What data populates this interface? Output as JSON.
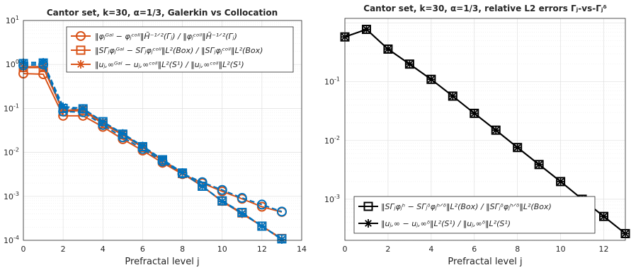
{
  "colors": {
    "orange": "#D95319",
    "blue": "#0072BD",
    "black": "#000000"
  },
  "chart_data": [
    {
      "type": "line",
      "title": "Cantor set, k=30, α=1/3, Galerkin vs Collocation",
      "xlabel": "Prefractal level j",
      "ylabel": "",
      "xlim": [
        0,
        14
      ],
      "ylim": [
        0.0001,
        10
      ],
      "yscale": "log",
      "grid": true,
      "legend_position": "top-right",
      "xticks": [
        "0",
        "2",
        "4",
        "6",
        "8",
        "10",
        "12",
        "14"
      ],
      "yticks": [
        "10^0 exp:0",
        "10^-1",
        "10^-2",
        "10^-3",
        "10^-4"
      ],
      "ytick_labels": [
        {
          "base": "10",
          "exp": "1"
        },
        {
          "base": "10",
          "exp": "0"
        },
        {
          "base": "10",
          "exp": "-1"
        },
        {
          "base": "10",
          "exp": "-2"
        },
        {
          "base": "10",
          "exp": "-3"
        },
        {
          "base": "10",
          "exp": "-4"
        }
      ],
      "x": [
        0,
        1,
        2,
        3,
        4,
        5,
        6,
        7,
        8,
        9,
        10,
        11,
        12,
        13
      ],
      "series": [
        {
          "name": "‖φⱼᴳᵃˡ − φⱼᶜᵒˡˡ‖ / ‖φⱼᶜᵒˡˡ‖ (H̃⁻¹ᐟ²(Γⱼ))",
          "group": "orange",
          "marker": "circle",
          "dash": "solid",
          "values": [
            0.62,
            0.6,
            0.068,
            0.068,
            0.038,
            0.02,
            0.011,
            0.0058,
            0.0032,
            0.002,
            0.0013,
            0.00088,
            0.00058,
            0.00044
          ]
        },
        {
          "name": "‖SΓⱼφⱼᴳᵃˡ − SΓⱼφⱼᶜᵒˡˡ‖ / ‖SΓⱼφⱼᶜᵒˡˡ‖ (L²(Box))",
          "group": "orange",
          "marker": "square",
          "dash": "solid",
          "values": [
            0.85,
            0.85,
            0.085,
            0.09,
            0.045,
            0.025,
            0.013,
            0.0065,
            0.0033,
            0.0017,
            0.00078,
            0.00042,
            0.00021,
            0.00011
          ]
        },
        {
          "name": "‖uᴳᵃˡ − uᶜᵒˡˡ‖ / ‖uᶜᵒˡˡ‖ (L²(S¹))",
          "group": "orange",
          "marker": "star",
          "dash": "solid",
          "values": [
            0.88,
            0.9,
            0.09,
            0.095,
            0.048,
            0.026,
            0.0135,
            0.0067,
            0.0034,
            0.0017,
            0.00076,
            0.0004,
            0.00021,
            0.000105
          ]
        },
        {
          "name": "blue-circle",
          "group": "blue",
          "marker": "circle",
          "dash": "dashed",
          "values": [
            0.95,
            1.0,
            0.085,
            0.082,
            0.042,
            0.022,
            0.012,
            0.0062,
            0.0033,
            0.0021,
            0.0014,
            0.00092,
            0.00065,
            0.00045
          ]
        },
        {
          "name": "blue-square",
          "group": "blue",
          "marker": "square",
          "dash": "dashed",
          "values": [
            1.05,
            1.08,
            0.1,
            0.098,
            0.05,
            0.026,
            0.0135,
            0.0068,
            0.0034,
            0.0017,
            0.00079,
            0.00043,
            0.00021,
            0.000108
          ]
        },
        {
          "name": "blue-star",
          "group": "blue",
          "marker": "star",
          "dash": "dashed",
          "values": [
            1.1,
            1.12,
            0.11,
            0.1,
            0.05,
            0.027,
            0.014,
            0.0069,
            0.0035,
            0.0017,
            0.00077,
            0.00041,
            0.00021,
            0.000104
          ]
        }
      ]
    },
    {
      "type": "line",
      "title": "Cantor set, k=30, α=1/3, relative L2 errors Γⱼ-vs-Γⱼᵟ",
      "xlabel": "Prefractal level j",
      "ylabel": "",
      "xlim": [
        0,
        13
      ],
      "ylim": [
        0.0002,
        1.2
      ],
      "yscale": "log",
      "grid": true,
      "legend_position": "bottom-left",
      "x": [
        0,
        1,
        2,
        3,
        4,
        5,
        6,
        7,
        8,
        9,
        10,
        11,
        12,
        13
      ],
      "series": [
        {
          "name": "‖SΓⱼφⱼʰ − SΓⱼᵟφⱼʰᐟᵟ‖ / ‖SΓⱼᵟφⱼʰᐟᵟ‖ (L²(Box))",
          "marker": "square",
          "dash": "solid",
          "values": [
            0.58,
            0.78,
            0.36,
            0.2,
            0.11,
            0.057,
            0.029,
            0.015,
            0.0076,
            0.0039,
            0.002,
            0.001,
            0.00051,
            0.00026
          ]
        },
        {
          "name": "‖uⱼ,∞ − uⱼ,∞ᵟ‖ / ‖uⱼ,∞ᵟ‖ (L²(S¹))",
          "marker": "star",
          "dash": "solid",
          "values": [
            0.58,
            0.78,
            0.36,
            0.2,
            0.11,
            0.057,
            0.029,
            0.015,
            0.0076,
            0.0039,
            0.002,
            0.001,
            0.00051,
            0.00026
          ]
        }
      ]
    }
  ],
  "left": {
    "title": "Cantor set, k=30, α=1/3, Galerkin vs Collocation",
    "xlabel": "Prefractal level j",
    "xticks": [
      "0",
      "2",
      "4",
      "6",
      "8",
      "10",
      "12",
      "14"
    ],
    "legend": [
      "‖φⱼᴳᵃˡ − φⱼᶜᵒˡˡ‖H̃⁻¹ᐟ²(Γⱼ) / ‖φⱼᶜᵒˡˡ‖H̃⁻¹ᐟ²(Γⱼ)",
      "‖SΓⱼφⱼᴳᵃˡ − SΓⱼφⱼᶜᵒˡˡ‖L²(Box) / ‖SΓⱼφⱼᶜᵒˡˡ‖L²(Box)",
      "‖uⱼ,∞ᴳᵃˡ − uⱼ,∞ᶜᵒˡˡ‖L²(S¹) / ‖uⱼ,∞ᶜᵒˡˡ‖L²(S¹)"
    ]
  },
  "right": {
    "title": "Cantor set, k=30, α=1/3, relative L2 errors Γⱼ-vs-Γⱼᵟ",
    "xlabel": "Prefractal level j",
    "xticks": [
      "0",
      "2",
      "4",
      "6",
      "8",
      "10",
      "12"
    ],
    "legend": [
      "‖SΓⱼφⱼʰ − SΓⱼᵟφⱼʰᐟᵟ‖L²(Box) / ‖SΓⱼᵟφⱼʰᐟᵟ‖L²(Box)",
      "‖uⱼ,∞ − uⱼ,∞ᵟ‖L²(S¹) / ‖uⱼ,∞ᵟ‖L²(S¹)"
    ]
  }
}
